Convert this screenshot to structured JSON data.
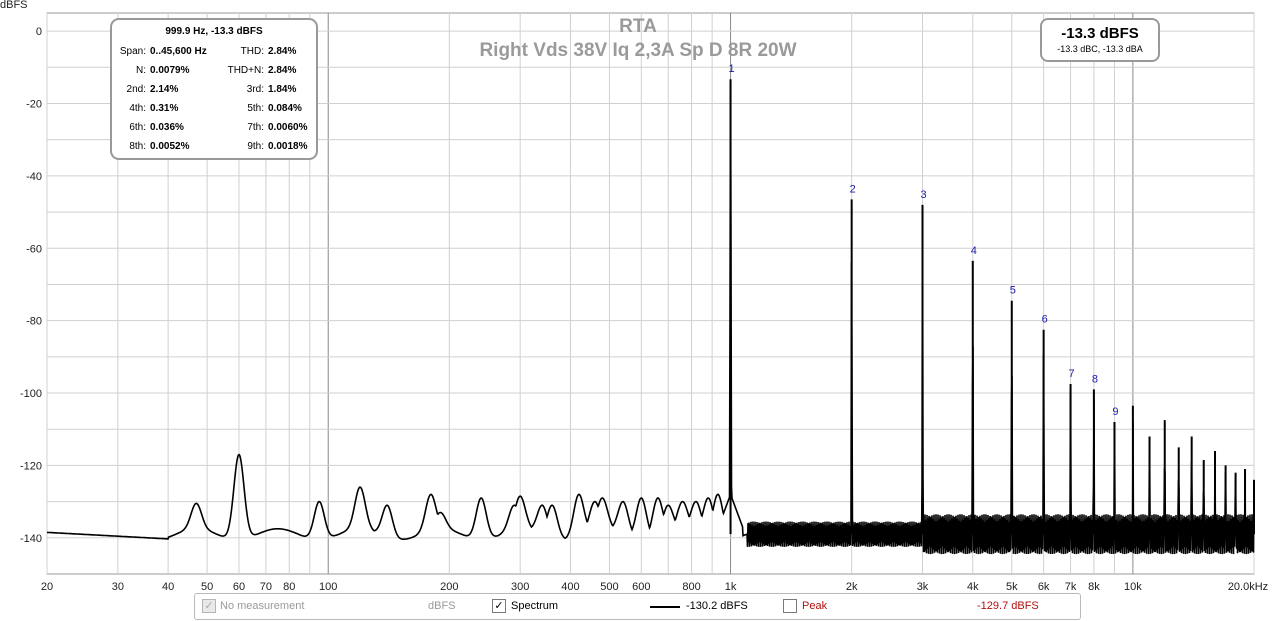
{
  "chart_data": {
    "type": "line",
    "title": "RTA",
    "subtitle": "Right Vds 38V Iq 2,3A Sp D 8R 20W",
    "ylabel": "dBFS",
    "xlabel": "",
    "x_scale": "log",
    "xlim": [
      20,
      20000
    ],
    "ylim": [
      -150,
      5
    ],
    "grid": true,
    "x_tick_labels": [
      {
        "value": 20,
        "label": "20"
      },
      {
        "value": 30,
        "label": "30"
      },
      {
        "value": 40,
        "label": "40"
      },
      {
        "value": 50,
        "label": "50"
      },
      {
        "value": 60,
        "label": "60"
      },
      {
        "value": 70,
        "label": "70"
      },
      {
        "value": 80,
        "label": "80"
      },
      {
        "value": 100,
        "label": "100"
      },
      {
        "value": 200,
        "label": "200"
      },
      {
        "value": 300,
        "label": "300"
      },
      {
        "value": 400,
        "label": "400"
      },
      {
        "value": 500,
        "label": "500"
      },
      {
        "value": 600,
        "label": "600"
      },
      {
        "value": 800,
        "label": "800"
      },
      {
        "value": 1000,
        "label": "1k"
      },
      {
        "value": 2000,
        "label": "2k"
      },
      {
        "value": 3000,
        "label": "3k"
      },
      {
        "value": 4000,
        "label": "4k"
      },
      {
        "value": 5000,
        "label": "5k"
      },
      {
        "value": 6000,
        "label": "6k"
      },
      {
        "value": 7000,
        "label": "7k"
      },
      {
        "value": 8000,
        "label": "8k"
      },
      {
        "value": 10000,
        "label": "10k"
      },
      {
        "value": 20000,
        "label": "20.0kHz"
      }
    ],
    "y_ticks": [
      0,
      -20,
      -40,
      -60,
      -80,
      -100,
      -120,
      -140
    ],
    "harmonics": [
      {
        "n": "1",
        "freq": 1000,
        "level": -13.3
      },
      {
        "n": "2",
        "freq": 2000,
        "level": -46.5
      },
      {
        "n": "3",
        "freq": 3000,
        "level": -48
      },
      {
        "n": "4",
        "freq": 4000,
        "level": -63.5
      },
      {
        "n": "5",
        "freq": 5000,
        "level": -74.5
      },
      {
        "n": "6",
        "freq": 6000,
        "level": -82.5
      },
      {
        "n": "7",
        "freq": 7000,
        "level": -97.5
      },
      {
        "n": "8",
        "freq": 8000,
        "level": -99
      },
      {
        "n": "9",
        "freq": 9000,
        "level": -108
      }
    ],
    "extra_peaks": [
      {
        "freq": 10000,
        "level": -103.5
      },
      {
        "freq": 11000,
        "level": -112
      },
      {
        "freq": 12000,
        "level": -107.5
      },
      {
        "freq": 13000,
        "level": -115
      },
      {
        "freq": 14000,
        "level": -112
      },
      {
        "freq": 15000,
        "level": -118.5
      },
      {
        "freq": 16000,
        "level": -116
      },
      {
        "freq": 17000,
        "level": -120
      },
      {
        "freq": 18000,
        "level": -122
      },
      {
        "freq": 19000,
        "level": -121
      },
      {
        "freq": 20000,
        "level": -124
      }
    ],
    "low_freq_peaks": [
      {
        "freq": 47,
        "level": -130.5
      },
      {
        "freq": 60,
        "level": -117
      },
      {
        "freq": 78,
        "level": -138.5
      },
      {
        "freq": 95,
        "level": -130
      },
      {
        "freq": 120,
        "level": -126
      },
      {
        "freq": 140,
        "level": -131
      },
      {
        "freq": 180,
        "level": -128
      },
      {
        "freq": 190,
        "level": -133
      },
      {
        "freq": 240,
        "level": -129
      },
      {
        "freq": 290,
        "level": -131
      },
      {
        "freq": 300,
        "level": -128.5
      },
      {
        "freq": 340,
        "level": -131
      },
      {
        "freq": 360,
        "level": -131
      },
      {
        "freq": 420,
        "level": -128
      },
      {
        "freq": 460,
        "level": -130
      },
      {
        "freq": 480,
        "level": -129
      },
      {
        "freq": 540,
        "level": -130
      },
      {
        "freq": 600,
        "level": -129
      },
      {
        "freq": 660,
        "level": -129
      },
      {
        "freq": 700,
        "level": -131
      },
      {
        "freq": 760,
        "level": -130
      },
      {
        "freq": 820,
        "level": -130
      },
      {
        "freq": 880,
        "level": -129
      },
      {
        "freq": 930,
        "level": -128
      }
    ],
    "noise_floor_db": -139,
    "series": [
      {
        "name": "Spectrum",
        "color": "#000000",
        "legend_value": "-130.2 dBFS",
        "checked": true
      }
    ]
  },
  "stats_box": {
    "header": "999.9 Hz, -13.3 dBFS",
    "rows": [
      {
        "k1": "Span:",
        "v1": "0..45,600 Hz",
        "k2": "THD:",
        "v2": "2.84%"
      },
      {
        "k1": "N:",
        "v1": "0.0079%",
        "k2": "THD+N:",
        "v2": "2.84%"
      },
      {
        "k1": "2nd:",
        "v1": "2.14%",
        "k2": "3rd:",
        "v2": "1.84%"
      },
      {
        "k1": "4th:",
        "v1": "0.31%",
        "k2": "5th:",
        "v2": "0.084%"
      },
      {
        "k1": "6th:",
        "v1": "0.036%",
        "k2": "7th:",
        "v2": "0.0060%"
      },
      {
        "k1": "8th:",
        "v1": "0.0052%",
        "k2": "9th:",
        "v2": "0.0018%"
      }
    ]
  },
  "level_box": {
    "main": "-13.3 dBFS",
    "sub": "-13.3 dBC, -13.3 dBA"
  },
  "legend": {
    "no_measurement_label": "No measurement",
    "no_measurement_unit": "dBFS",
    "spectrum_label": "Spectrum",
    "spectrum_value": "-130.2 dBFS",
    "peak_label": "Peak",
    "peak_value": "-129.7 dBFS",
    "peak_color": "#b01010",
    "checkmark": "✓"
  }
}
